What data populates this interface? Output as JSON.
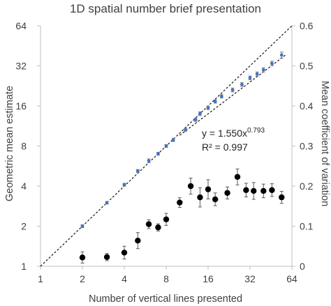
{
  "chart_data": {
    "type": "scatter",
    "title": "1D spatial number brief presentation",
    "xlabel": "Number of vertical lines presented",
    "ylabel": "Geometric mean estimate",
    "y2label": "Mean coefficient of variation",
    "x_scale": "log2",
    "y_scale": "log2",
    "xlim": [
      1,
      64
    ],
    "ylim": [
      1,
      64
    ],
    "y2lim": [
      0,
      0.6
    ],
    "x_ticks": [
      "1",
      "2",
      "4",
      "8",
      "16",
      "32",
      "64"
    ],
    "y_ticks": [
      "1",
      "2",
      "4",
      "8",
      "16",
      "32",
      "64"
    ],
    "y2_ticks": [
      "0",
      "0.1",
      "0.2",
      "0.3",
      "0.4",
      "0.5",
      "0.6"
    ],
    "grid": false,
    "series": [
      {
        "role": "estimate",
        "axis": "left",
        "color": "#4472c4",
        "x": [
          2,
          3,
          4,
          5,
          6,
          7,
          8,
          9,
          11,
          13,
          14,
          16,
          18,
          20,
          24,
          28,
          32,
          36,
          40,
          46,
          54
        ],
        "y": [
          2.0,
          3.0,
          4.1,
          5.2,
          6.2,
          7.0,
          8.0,
          8.9,
          10.6,
          12.6,
          14.0,
          15.5,
          17.3,
          18.9,
          21.1,
          23.2,
          26.0,
          27.8,
          29.9,
          33.4,
          38.6
        ],
        "err": [
          0.05,
          0.07,
          0.1,
          0.13,
          0.2,
          0.18,
          0.2,
          0.25,
          0.3,
          0.35,
          0.45,
          0.5,
          0.5,
          0.55,
          0.7,
          0.75,
          0.85,
          1.0,
          1.1,
          1.3,
          2.0
        ]
      },
      {
        "role": "coefficient_of_variation",
        "axis": "right",
        "color": "#000000",
        "x": [
          2,
          3,
          4,
          5,
          6,
          7,
          8,
          10,
          12,
          14,
          16,
          18,
          22,
          26,
          30,
          34,
          40,
          46,
          54
        ],
        "y": [
          0.022,
          0.023,
          0.034,
          0.064,
          0.105,
          0.097,
          0.117,
          0.159,
          0.2,
          0.172,
          0.192,
          0.167,
          0.183,
          0.223,
          0.19,
          0.188,
          0.188,
          0.19,
          0.172
        ],
        "err": [
          0.014,
          0.009,
          0.016,
          0.02,
          0.011,
          0.009,
          0.015,
          0.012,
          0.02,
          0.024,
          0.024,
          0.016,
          0.015,
          0.02,
          0.017,
          0.021,
          0.017,
          0.016,
          0.015
        ]
      }
    ],
    "fit": {
      "style": "dashed",
      "a": 1.55,
      "b": 0.793,
      "x_range": [
        10,
        58
      ],
      "equation_prefix": "y = 1.550x",
      "equation_exponent": "0.793",
      "r2_text": "R² = 0.997"
    },
    "reference_line": {
      "style": "dashed",
      "description": "identity y = x"
    }
  }
}
